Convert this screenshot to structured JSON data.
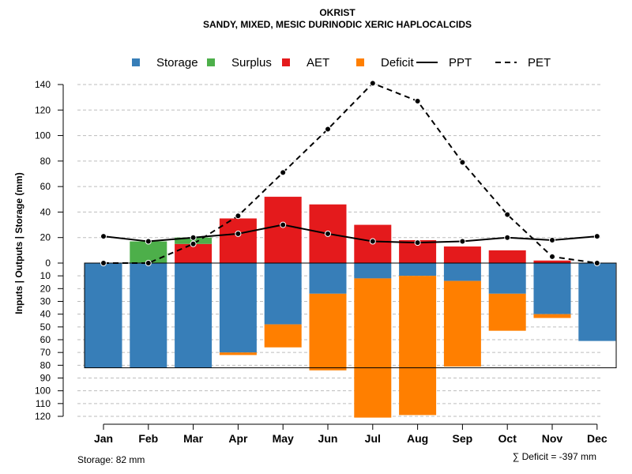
{
  "chart_data": {
    "type": "bar",
    "title": "OKRIST",
    "subtitle": "SANDY, MIXED, MESIC DURINODIC XERIC HAPLOCALCIDS",
    "ylabel": "Inputs | Outputs | Storage    (mm)",
    "categories": [
      "Jan",
      "Feb",
      "Mar",
      "Apr",
      "May",
      "Jun",
      "Jul",
      "Aug",
      "Sep",
      "Oct",
      "Nov",
      "Dec"
    ],
    "ylim_top": [
      0,
      140
    ],
    "ylim_bottom": [
      0,
      120
    ],
    "top_ticks": [
      "0",
      "20",
      "40",
      "60",
      "80",
      "100",
      "120",
      "140"
    ],
    "bottom_ticks": [
      "10",
      "20",
      "30",
      "40",
      "50",
      "60",
      "70",
      "80",
      "90",
      "100",
      "110",
      "120"
    ],
    "grid": true,
    "legend_position": "top",
    "legend": [
      {
        "label": "Storage",
        "kind": "box",
        "color": "#377EB8"
      },
      {
        "label": "Surplus",
        "kind": "box",
        "color": "#4DAF4A"
      },
      {
        "label": "AET",
        "kind": "box",
        "color": "#E41A1C"
      },
      {
        "label": "Deficit",
        "kind": "box",
        "color": "#FF7F00"
      },
      {
        "label": "PPT",
        "kind": "solid",
        "color": "#000000"
      },
      {
        "label": "PET",
        "kind": "dashed",
        "color": "#000000"
      }
    ],
    "storage_capacity": 82,
    "series": [
      {
        "name": "Surplus",
        "color": "#4DAF4A",
        "values": [
          0,
          17,
          5,
          0,
          0,
          0,
          0,
          0,
          0,
          0,
          0,
          0
        ]
      },
      {
        "name": "AET",
        "color": "#E41A1C",
        "values": [
          0,
          0,
          15,
          35,
          52,
          46,
          30,
          18,
          13,
          10,
          2,
          0
        ]
      },
      {
        "name": "Storage",
        "color": "#377EB8",
        "values": [
          82,
          82,
          82,
          70,
          48,
          24,
          12,
          10,
          14,
          24,
          40,
          61
        ]
      },
      {
        "name": "Deficit",
        "color": "#FF7F00",
        "values": [
          0,
          0,
          0,
          2,
          18,
          60,
          109,
          109,
          67,
          29,
          3,
          0
        ]
      },
      {
        "name": "PPT",
        "color": "#000000",
        "values": [
          21,
          17,
          20,
          23,
          30,
          23,
          17,
          16,
          17,
          20,
          18,
          21
        ]
      },
      {
        "name": "PET",
        "color": "#000000",
        "values": [
          0,
          0,
          15,
          37,
          71,
          105,
          141,
          127,
          79,
          38,
          5,
          0
        ]
      }
    ],
    "footer_left": "Storage: 82 mm",
    "footer_right": "∑ Deficit = -397 mm"
  }
}
